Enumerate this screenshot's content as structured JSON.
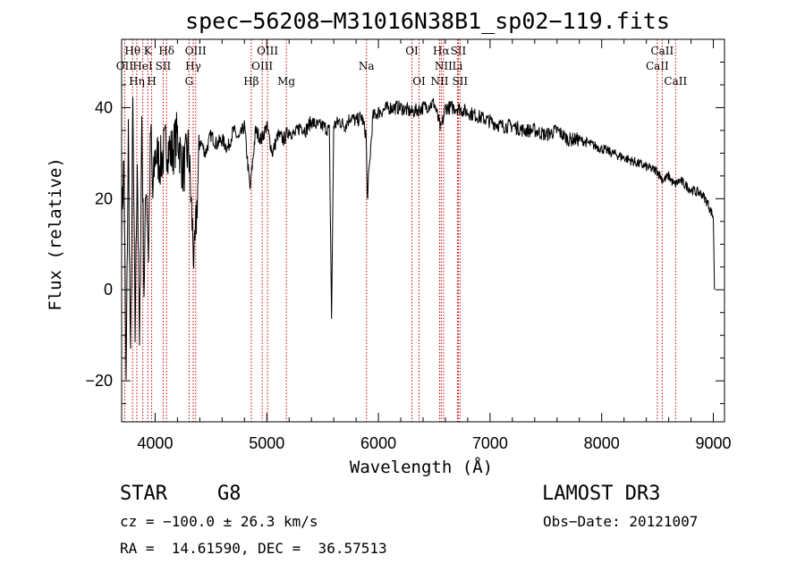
{
  "chart_data": {
    "type": "line",
    "title": "spec−56208−M31016N38B1_sp02−119.fits",
    "xlabel": "Wavelength (Å)",
    "ylabel": "Flux (relative)",
    "xlim": [
      3700,
      9100
    ],
    "ylim": [
      -29,
      55
    ],
    "xticks": [
      4000,
      5000,
      6000,
      7000,
      8000,
      9000
    ],
    "yticks": [
      -20,
      0,
      20,
      40
    ],
    "series": [
      {
        "name": "flux",
        "x": [
          3700,
          3720,
          3740,
          3760,
          3780,
          3800,
          3820,
          3840,
          3860,
          3880,
          3900,
          3920,
          3940,
          3960,
          3980,
          4000,
          4050,
          4100,
          4150,
          4200,
          4250,
          4300,
          4350,
          4400,
          4450,
          4500,
          4550,
          4600,
          4650,
          4700,
          4750,
          4800,
          4850,
          4900,
          4950,
          5000,
          5050,
          5100,
          5150,
          5200,
          5250,
          5300,
          5350,
          5400,
          5450,
          5500,
          5560,
          5580,
          5600,
          5650,
          5700,
          5750,
          5800,
          5850,
          5890,
          5900,
          5950,
          6000,
          6100,
          6200,
          6300,
          6400,
          6500,
          6560,
          6600,
          6700,
          6800,
          6900,
          7000,
          7100,
          7200,
          7300,
          7400,
          7500,
          7600,
          7700,
          7800,
          7900,
          8000,
          8100,
          8200,
          8300,
          8400,
          8500,
          8550,
          8600,
          8650,
          8700,
          8800,
          8900,
          8950,
          9000,
          9010
        ],
        "y": [
          15,
          28,
          -22,
          35,
          -18,
          40,
          -10,
          30,
          -15,
          38,
          0,
          25,
          8,
          35,
          20,
          30,
          28,
          32,
          30,
          34,
          26,
          31,
          5,
          33,
          30,
          34,
          32,
          33,
          31,
          35,
          33,
          36,
          22,
          35,
          33,
          36,
          30,
          34,
          33,
          35,
          34,
          36,
          35,
          37,
          36,
          36,
          35,
          -6,
          36,
          37,
          36,
          38,
          37,
          38,
          34,
          20,
          38,
          39,
          40,
          40,
          39,
          40,
          41,
          35,
          40,
          40,
          39,
          38,
          37,
          36,
          36,
          35,
          35,
          34,
          35,
          33,
          33,
          32,
          31,
          30,
          29,
          28,
          27,
          26,
          24,
          25,
          23,
          24,
          22,
          21,
          19,
          16,
          0
        ]
      }
    ],
    "lines": [
      {
        "name": "OII",
        "wave": 3727,
        "row": 2,
        "label": "OII"
      },
      {
        "name": "Hθ",
        "wave": 3798,
        "row": 1,
        "label": "Hθ"
      },
      {
        "name": "Hη",
        "wave": 3836,
        "row": 3,
        "label": "Hη"
      },
      {
        "name": "K",
        "wave": 3934,
        "row": 1,
        "label": "K"
      },
      {
        "name": "HeI",
        "wave": 3889,
        "row": 2,
        "label": "HeI"
      },
      {
        "name": "H",
        "wave": 3969,
        "row": 3,
        "label": "H"
      },
      {
        "name": "SII",
        "wave": 4072,
        "row": 2,
        "label": "SII"
      },
      {
        "name": "Hδ",
        "wave": 4102,
        "row": 1,
        "label": "Hδ"
      },
      {
        "name": "G",
        "wave": 4304,
        "row": 3,
        "label": "G"
      },
      {
        "name": "Hγ",
        "wave": 4341,
        "row": 2,
        "label": "Hγ"
      },
      {
        "name": "OIII",
        "wave": 4363,
        "row": 1,
        "label": "OIII"
      },
      {
        "name": "Hβ",
        "wave": 4861,
        "row": 3,
        "label": "Hβ"
      },
      {
        "name": "OIII",
        "wave": 4959,
        "row": 2,
        "label": "OIII"
      },
      {
        "name": "OIII",
        "wave": 5007,
        "row": 1,
        "label": "OIII"
      },
      {
        "name": "Mg",
        "wave": 5175,
        "row": 3,
        "label": "Mg"
      },
      {
        "name": "Na",
        "wave": 5893,
        "row": 2,
        "label": "Na"
      },
      {
        "name": "OI",
        "wave": 6300,
        "row": 1,
        "label": "OI"
      },
      {
        "name": "OI",
        "wave": 6364,
        "row": 3,
        "label": "OI"
      },
      {
        "name": "NII",
        "wave": 6548,
        "row": 3,
        "label": "NII"
      },
      {
        "name": "Hα",
        "wave": 6563,
        "row": 1,
        "label": "Hα"
      },
      {
        "name": "NII",
        "wave": 6583,
        "row": 2,
        "label": "NII"
      },
      {
        "name": "SII",
        "wave": 6716,
        "row": 1,
        "label": "SII"
      },
      {
        "name": "Li",
        "wave": 6708,
        "row": 2,
        "label": "Li"
      },
      {
        "name": "SII",
        "wave": 6731,
        "row": 3,
        "label": "SII"
      },
      {
        "name": "CaII",
        "wave": 8498,
        "row": 2,
        "label": "CaII"
      },
      {
        "name": "CaII",
        "wave": 8542,
        "row": 1,
        "label": "CaII"
      },
      {
        "name": "CaII",
        "wave": 8662,
        "row": 3,
        "label": "CaII"
      }
    ],
    "line_color": "#cc0000",
    "spectrum_color": "#000000",
    "grid": false
  },
  "info": {
    "class": "STAR",
    "subclass": "G8",
    "survey": "LAMOST DR3",
    "cz": "cz = −100.0 ± 26.3 km/s",
    "obs_date": "Obs−Date: 20121007",
    "radec": "RA =  14.61590, DEC =  36.57513"
  }
}
